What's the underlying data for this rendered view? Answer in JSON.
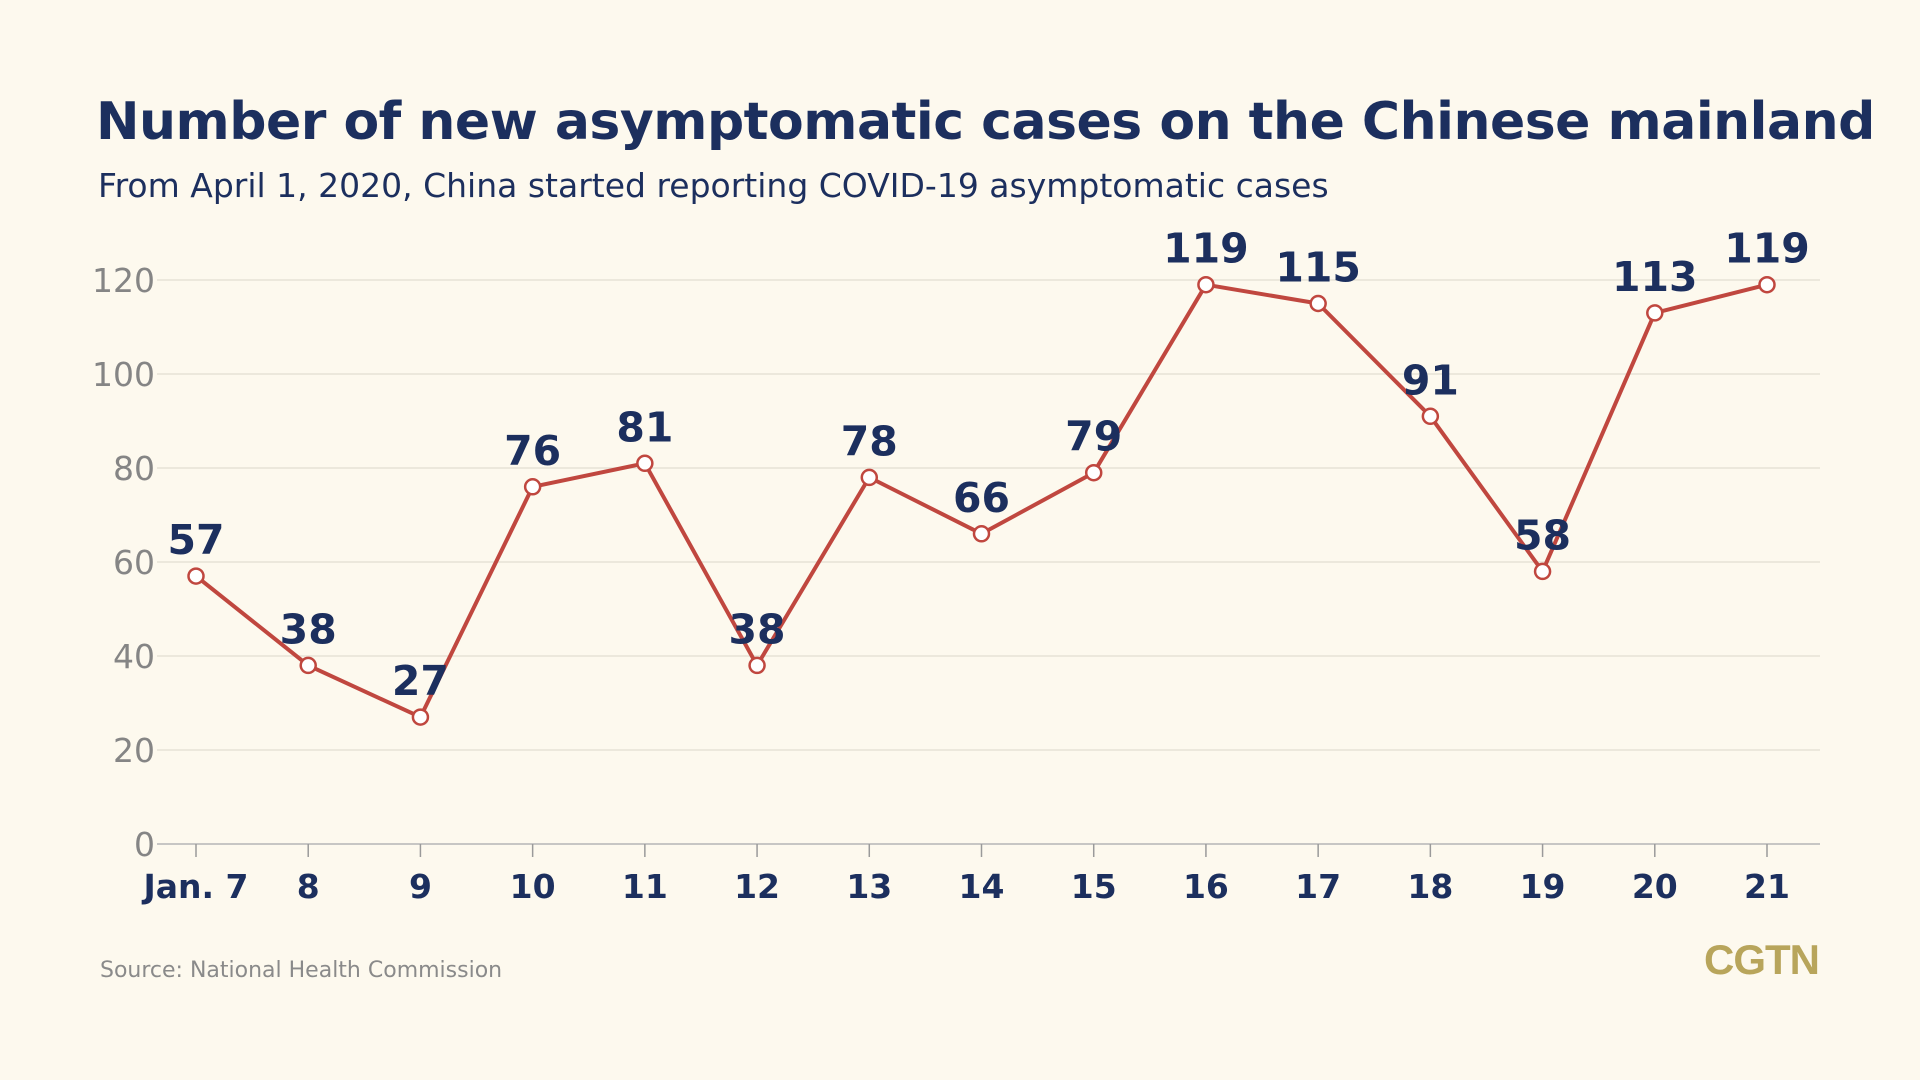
{
  "chart_data": {
    "type": "line",
    "title": "Number of new asymptomatic cases on the Chinese mainland",
    "subtitle": "From April 1, 2020, China started reporting COVID-19 asymptomatic cases",
    "categories": [
      "Jan. 7",
      "8",
      "9",
      "10",
      "11",
      "12",
      "13",
      "14",
      "15",
      "16",
      "17",
      "18",
      "19",
      "20",
      "21"
    ],
    "series": [
      {
        "values": [
          57,
          38,
          27,
          76,
          81,
          38,
          78,
          66,
          79,
          119,
          115,
          91,
          58,
          113,
          119
        ]
      }
    ],
    "y_ticks": [
      0,
      20,
      40,
      60,
      80,
      100,
      120
    ],
    "ylim": [
      0,
      120
    ],
    "grid": true,
    "xlabel": "",
    "ylabel": "",
    "line_color": "#c0473f",
    "label_color": "#1c2f5e"
  },
  "source": "Source: National Health Commission",
  "logo": "CGTN"
}
